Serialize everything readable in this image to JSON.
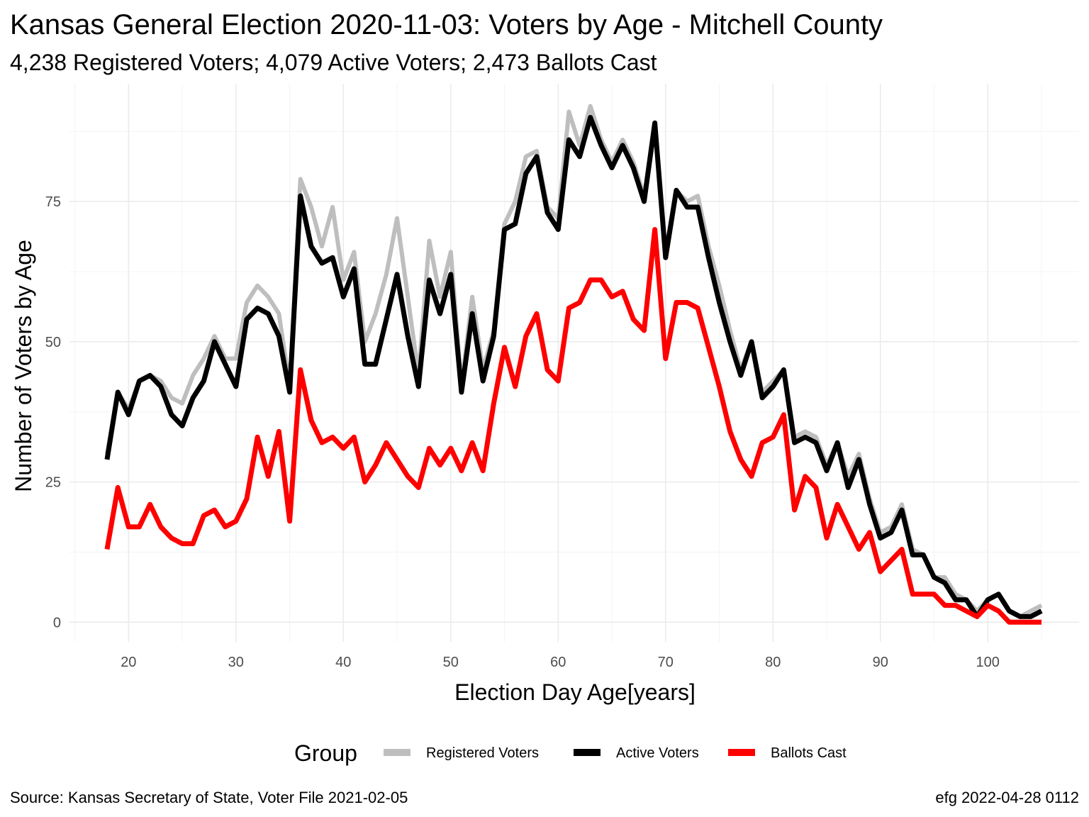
{
  "chart_data": {
    "type": "line",
    "title": "Kansas General Election 2020-11-03:  Voters by Age - Mitchell County",
    "subtitle": "4,238 Registered Voters; 4,079 Active Voters; 2,473 Ballots Cast",
    "xlabel": "Election Day Age[years]",
    "ylabel": "Number of Voters by Age",
    "xlim": [
      14.5,
      108.5
    ],
    "ylim": [
      -3.5,
      96
    ],
    "x_ticks": [
      20,
      30,
      40,
      50,
      60,
      70,
      80,
      90,
      100
    ],
    "y_ticks": [
      0,
      25,
      50,
      75
    ],
    "grid": true,
    "legend_title": "Group",
    "legend_position": "bottom",
    "caption_left": "Source:  Kansas Secretary of State, Voter File  2021-02-05",
    "caption_right": "efg 2022-04-28 0112",
    "x": [
      18,
      19,
      20,
      21,
      22,
      23,
      24,
      25,
      26,
      27,
      28,
      29,
      30,
      31,
      32,
      33,
      34,
      35,
      36,
      37,
      38,
      39,
      40,
      41,
      42,
      43,
      44,
      45,
      46,
      47,
      48,
      49,
      50,
      51,
      52,
      53,
      54,
      55,
      56,
      57,
      58,
      59,
      60,
      61,
      62,
      63,
      64,
      65,
      66,
      67,
      68,
      69,
      70,
      71,
      72,
      73,
      74,
      75,
      76,
      77,
      78,
      79,
      80,
      81,
      82,
      83,
      84,
      85,
      86,
      87,
      88,
      89,
      90,
      91,
      92,
      93,
      94,
      95,
      96,
      97,
      98,
      99,
      100,
      101,
      102,
      103,
      104,
      105
    ],
    "series": [
      {
        "name": "Registered Voters",
        "color": "#bebebe",
        "values": [
          30,
          41,
          38,
          43,
          44,
          43,
          40,
          39,
          44,
          47,
          51,
          47,
          47,
          57,
          60,
          58,
          55,
          42,
          79,
          74,
          67,
          74,
          61,
          66,
          50,
          55,
          62,
          72,
          58,
          44,
          68,
          58,
          66,
          42,
          58,
          45,
          52,
          71,
          75,
          83,
          84,
          74,
          72,
          91,
          85,
          92,
          86,
          82,
          86,
          82,
          76,
          89,
          66,
          77,
          75,
          76,
          67,
          60,
          52,
          45,
          50,
          41,
          43,
          45,
          33,
          34,
          33,
          28,
          32,
          26,
          30,
          22,
          16,
          17,
          21,
          13,
          12,
          8,
          8,
          5,
          4,
          2,
          4,
          5,
          2,
          1,
          2,
          3
        ],
        "stroke_width": 6
      },
      {
        "name": "Active Voters",
        "color": "#000000",
        "values": [
          29,
          41,
          37,
          43,
          44,
          42,
          37,
          35,
          40,
          43,
          50,
          46,
          42,
          54,
          56,
          55,
          51,
          41,
          76,
          67,
          64,
          65,
          58,
          63,
          46,
          46,
          54,
          62,
          51,
          42,
          61,
          55,
          62,
          41,
          55,
          43,
          51,
          70,
          71,
          80,
          83,
          73,
          70,
          86,
          83,
          90,
          85,
          81,
          85,
          81,
          75,
          89,
          65,
          77,
          74,
          74,
          65,
          57,
          50,
          44,
          50,
          40,
          42,
          45,
          32,
          33,
          32,
          27,
          32,
          24,
          29,
          21,
          15,
          16,
          20,
          12,
          12,
          8,
          7,
          4,
          4,
          1,
          4,
          5,
          2,
          1,
          1,
          2
        ],
        "stroke_width": 7
      },
      {
        "name": "Ballots Cast",
        "color": "#ff0000",
        "values": [
          13,
          24,
          17,
          17,
          21,
          17,
          15,
          14,
          14,
          19,
          20,
          17,
          18,
          22,
          33,
          26,
          34,
          18,
          45,
          36,
          32,
          33,
          31,
          33,
          25,
          28,
          32,
          29,
          26,
          24,
          31,
          28,
          31,
          27,
          32,
          27,
          39,
          49,
          42,
          51,
          55,
          45,
          43,
          56,
          57,
          61,
          61,
          58,
          59,
          54,
          52,
          70,
          47,
          57,
          57,
          56,
          49,
          42,
          34,
          29,
          26,
          32,
          33,
          37,
          20,
          26,
          24,
          15,
          21,
          17,
          13,
          16,
          9,
          11,
          13,
          5,
          5,
          5,
          3,
          3,
          2,
          1,
          3,
          2,
          0,
          0,
          0,
          0
        ],
        "stroke_width": 7
      }
    ]
  }
}
